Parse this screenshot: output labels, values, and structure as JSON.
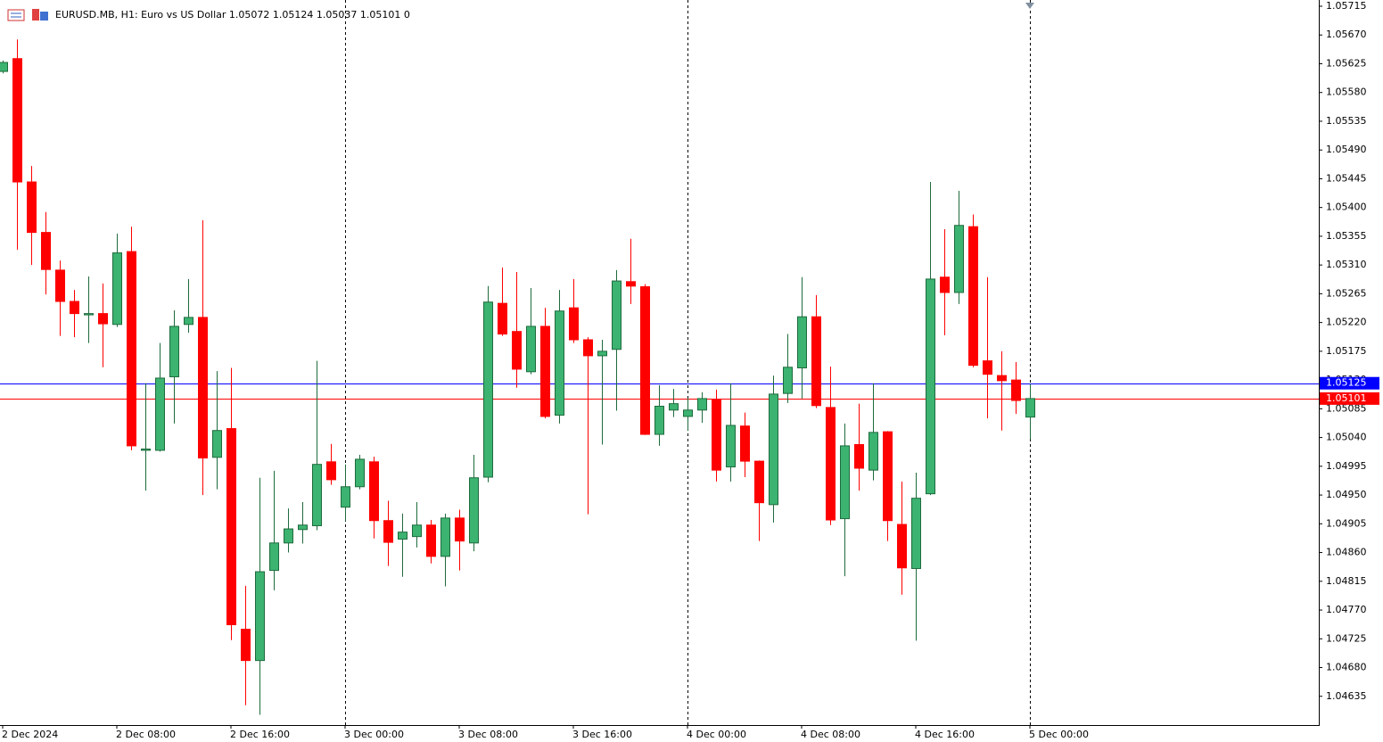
{
  "chart_data": {
    "type": "candlestick",
    "title": "EURUSD.MB, H1:  Euro vs US Dollar  1.05072 1.05124 1.05037 1.05101  0",
    "categories": [
      "2 Dec 2024",
      null,
      null,
      null,
      null,
      null,
      null,
      null,
      "2 Dec 08:00",
      null,
      null,
      null,
      null,
      null,
      null,
      null,
      "2 Dec 16:00",
      null,
      null,
      null,
      null,
      null,
      null,
      null,
      "3 Dec 00:00",
      null,
      null,
      null,
      null,
      null,
      null,
      null,
      "3 Dec 08:00",
      null,
      null,
      null,
      null,
      null,
      null,
      null,
      "3 Dec 16:00",
      null,
      null,
      null,
      null,
      null,
      null,
      null,
      "4 Dec 00:00",
      null,
      null,
      null,
      null,
      null,
      null,
      null,
      "4 Dec 08:00",
      null,
      null,
      null,
      null,
      null,
      null,
      null,
      "4 Dec 16:00",
      null,
      null,
      null,
      null,
      null,
      null,
      null,
      "5 Dec 00:00"
    ],
    "open": [
      1.05613,
      1.05633,
      1.0544,
      1.05361,
      1.05302,
      1.05253,
      1.05232,
      1.05234,
      1.05217,
      1.05331,
      1.0502,
      1.0502,
      1.05135,
      1.05217,
      1.05228,
      1.05009,
      1.05054,
      1.0474,
      1.04691,
      1.04832,
      1.04875,
      1.04896,
      1.04902,
      1.05002,
      1.04931,
      1.04963,
      1.05002,
      1.0491,
      1.04881,
      1.04885,
      1.04903,
      1.04854,
      1.04914,
      1.04875,
      1.04978,
      1.0525,
      1.05206,
      1.05143,
      1.05214,
      1.05075,
      1.05243,
      1.05193,
      1.05168,
      1.05178,
      1.05284,
      1.05276,
      1.05045,
      1.05083,
      1.05073,
      1.05083,
      1.051,
      1.04994,
      1.05058,
      1.05003,
      1.04935,
      1.05109,
      1.05149,
      1.05229,
      1.05087,
      1.04913,
      1.05029,
      1.04989,
      1.05049,
      1.04904,
      1.04835,
      1.04952,
      1.05291,
      1.05267,
      1.0537,
      1.0516,
      1.05137,
      1.0513,
      1.05072
    ],
    "high": [
      1.0563,
      1.05663,
      1.05465,
      1.05393,
      1.05317,
      1.05271,
      1.05292,
      1.05281,
      1.05359,
      1.0537,
      1.05125,
      1.05188,
      1.05239,
      1.05288,
      1.0538,
      1.05144,
      1.05149,
      1.04808,
      1.04977,
      1.04988,
      1.04929,
      1.04939,
      1.0516,
      1.0503,
      1.04998,
      1.05013,
      1.0501,
      1.04941,
      1.04921,
      1.04939,
      1.04911,
      1.04921,
      1.04927,
      1.05013,
      1.05277,
      1.05306,
      1.05299,
      1.05274,
      1.05243,
      1.05271,
      1.05288,
      1.05197,
      1.05193,
      1.05302,
      1.05351,
      1.0528,
      1.05122,
      1.05116,
      1.05102,
      1.05111,
      1.05115,
      1.05125,
      1.05079,
      1.05004,
      1.05137,
      1.05202,
      1.05291,
      1.05263,
      1.05151,
      1.05062,
      1.05093,
      1.05125,
      1.0505,
      1.04971,
      1.04985,
      1.0544,
      1.05366,
      1.05426,
      1.05389,
      1.05291,
      1.05175,
      1.05158,
      1.05124
    ],
    "low": [
      1.0561,
      1.05334,
      1.0531,
      1.05264,
      1.05199,
      1.05197,
      1.05188,
      1.0515,
      1.05213,
      1.0502,
      1.04957,
      1.05018,
      1.05062,
      1.05204,
      1.0495,
      1.04959,
      1.04723,
      1.04621,
      1.04606,
      1.04801,
      1.0486,
      1.04874,
      1.04895,
      1.04966,
      1.04909,
      1.04959,
      1.04882,
      1.04839,
      1.04822,
      1.04868,
      1.04843,
      1.04807,
      1.04832,
      1.04862,
      1.0497,
      1.05199,
      1.05118,
      1.05139,
      1.0507,
      1.05062,
      1.05188,
      1.0492,
      1.05029,
      1.05082,
      1.05249,
      1.05044,
      1.05027,
      1.05072,
      1.05051,
      1.05063,
      1.04971,
      1.04971,
      1.04978,
      1.04878,
      1.04907,
      1.05094,
      1.05101,
      1.05086,
      1.04903,
      1.04823,
      1.04957,
      1.04973,
      1.04878,
      1.04794,
      1.04722,
      1.0495,
      1.052,
      1.05249,
      1.0515,
      1.0507,
      1.05051,
      1.05077,
      1.05037
    ],
    "close": [
      1.05627,
      1.0544,
      1.05361,
      1.05303,
      1.05253,
      1.05234,
      1.05234,
      1.05218,
      1.05329,
      1.05027,
      1.05022,
      1.05133,
      1.05214,
      1.05228,
      1.05008,
      1.05051,
      1.04747,
      1.04691,
      1.0483,
      1.04875,
      1.04897,
      1.04903,
      1.04998,
      1.04974,
      1.04963,
      1.05006,
      1.0491,
      1.04876,
      1.04892,
      1.04903,
      1.04854,
      1.04914,
      1.04878,
      1.04977,
      1.05252,
      1.05202,
      1.05147,
      1.05214,
      1.05073,
      1.05238,
      1.05193,
      1.05168,
      1.05175,
      1.05285,
      1.05277,
      1.05045,
      1.05089,
      1.05093,
      1.05083,
      1.05101,
      1.04989,
      1.05059,
      1.05003,
      1.04938,
      1.05108,
      1.0515,
      1.05229,
      1.0509,
      1.04911,
      1.05027,
      1.04992,
      1.05048,
      1.0491,
      1.04836,
      1.04945,
      1.05288,
      1.05267,
      1.05372,
      1.05153,
      1.05139,
      1.05129,
      1.05098,
      1.05101
    ],
    "up_color": "#3cb371",
    "down_color": "#ff0000",
    "ylim": [
      1.0459,
      1.05715
    ],
    "yticks": [
      1.05715,
      {
        "value": 1.0567,
        "label": "1.05670"
      },
      1.05625,
      {
        "value": 1.0558,
        "label": "1.05580"
      },
      1.05535,
      {
        "value": 1.0549,
        "label": "1.05490"
      },
      1.05445,
      {
        "value": 1.054,
        "label": "1.05400"
      },
      1.05355,
      {
        "value": 1.0531,
        "label": "1.05310"
      },
      1.05265,
      {
        "value": 1.0522,
        "label": "1.05220"
      },
      1.05175,
      {
        "value": 1.0513,
        "label": "1.05130"
      },
      1.05085,
      {
        "value": 1.0504,
        "label": "1.05040"
      },
      1.04995,
      {
        "value": 1.0495,
        "label": "1.04950"
      },
      1.04905,
      {
        "value": 1.0486,
        "label": "1.04860"
      },
      1.04815,
      {
        "value": 1.0477,
        "label": "1.04770"
      },
      1.04725,
      {
        "value": 1.0468,
        "label": "1.04680"
      },
      1.04635
    ],
    "price_lines": [
      {
        "value": 1.05125,
        "color": "#0000ff"
      },
      {
        "value": 1.05101,
        "color": "#ff0000"
      }
    ],
    "period_separators": true
  }
}
